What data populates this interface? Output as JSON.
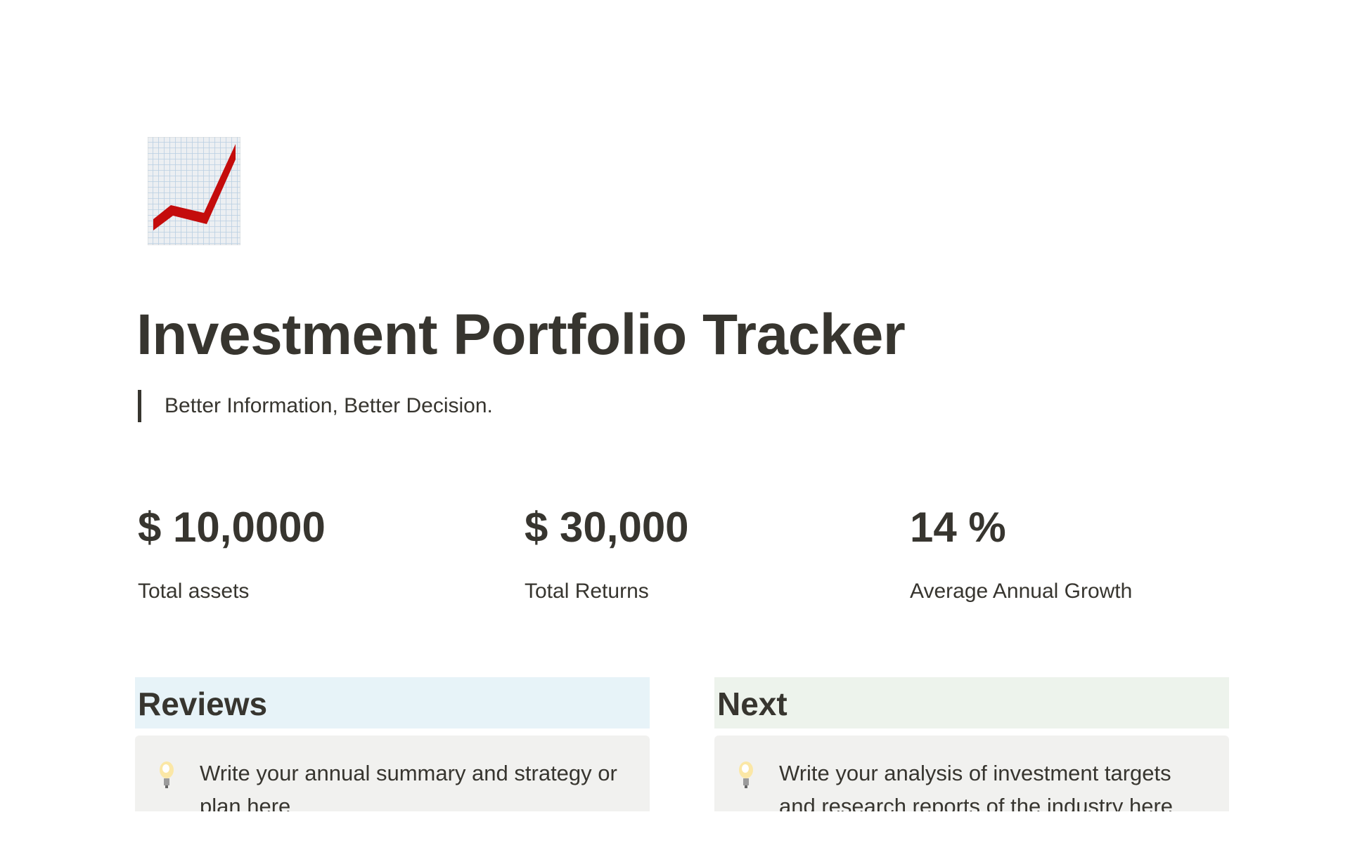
{
  "page": {
    "icon": "chart-increasing-icon",
    "title": "Investment Portfolio Tracker",
    "quote": "Better Information, Better Decision."
  },
  "stats": [
    {
      "value": "$ 10,0000",
      "label": "Total assets"
    },
    {
      "value": "$ 30,000",
      "label": "Total Returns"
    },
    {
      "value": "14 %",
      "label": "Average Annual Growth"
    }
  ],
  "sections": [
    {
      "heading": "Reviews",
      "bg": "#e7f3f8",
      "callout_icon": "lightbulb-icon",
      "callout_text": "Write your annual summary and strategy or plan here"
    },
    {
      "heading": "Next",
      "bg": "#edf3ec",
      "callout_icon": "lightbulb-icon",
      "callout_text": "Write your analysis of investment targets and research reports of the industry here"
    }
  ],
  "colors": {
    "text": "#37352f",
    "callout_bg": "#f1f1ef",
    "chart_line": "#c40c0c"
  }
}
